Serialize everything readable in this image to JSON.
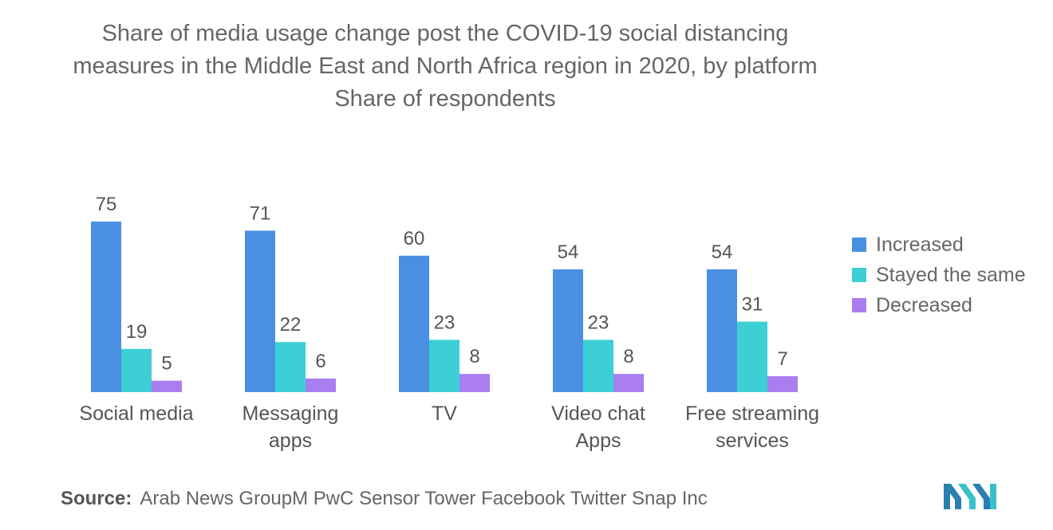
{
  "chart_data": {
    "type": "bar",
    "title": "Share of media usage change post the COVID-19 social distancing measures in the Middle East and North Africa region in 2020, by platform Share of respondents",
    "categories": [
      [
        "Social media"
      ],
      [
        "Messaging",
        "apps"
      ],
      [
        "TV"
      ],
      [
        "Video chat",
        "Apps"
      ],
      [
        "Free streaming",
        "services"
      ]
    ],
    "series": [
      {
        "name": "Increased",
        "color": "#4a90e2",
        "values": [
          75,
          71,
          60,
          54,
          54
        ]
      },
      {
        "name": "Stayed the same",
        "color": "#3ccfd6",
        "values": [
          19,
          22,
          23,
          23,
          31
        ]
      },
      {
        "name": "Decreased",
        "color": "#a97ef0",
        "values": [
          5,
          6,
          8,
          8,
          7
        ]
      }
    ],
    "xlabel": "",
    "ylabel": "",
    "ylim": [
      0,
      75
    ],
    "grid": false,
    "legend_position": "right"
  },
  "source": {
    "label": "Source:",
    "text": "Arab News GroupM PwC Sensor Tower Facebook Twitter Snap Inc"
  },
  "logo": {
    "icon": "mordor-intelligence-logo-icon"
  }
}
